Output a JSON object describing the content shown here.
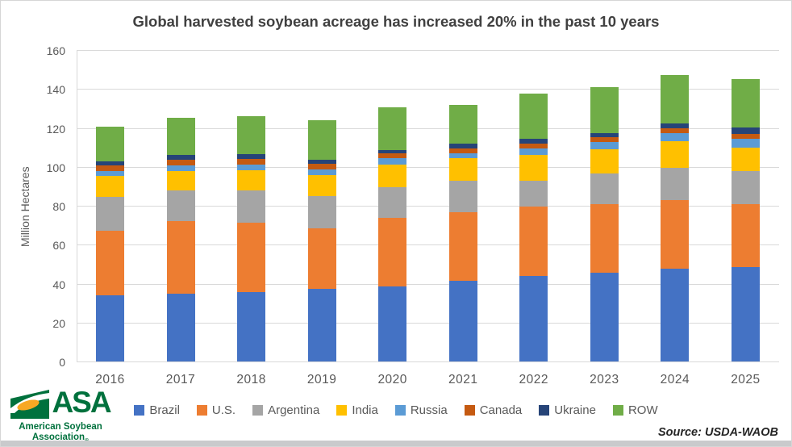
{
  "chart_data": {
    "type": "bar",
    "stacked": true,
    "title": "Global harvested soybean acreage has increased 20% in the past 10 years",
    "xlabel": "",
    "ylabel": "Million Hectares",
    "ylim": [
      0,
      160
    ],
    "ytick_step": 20,
    "grid": true,
    "legend_position": "bottom",
    "categories": [
      "2016",
      "2017",
      "2018",
      "2019",
      "2020",
      "2021",
      "2022",
      "2023",
      "2024",
      "2025"
    ],
    "series": [
      {
        "name": "Brazil",
        "color": "#4472C4",
        "values": [
          34.0,
          35.0,
          35.5,
          37.5,
          38.7,
          41.3,
          44.0,
          45.8,
          47.5,
          48.5
        ]
      },
      {
        "name": "U.S.",
        "color": "#ED7D31",
        "values": [
          33.0,
          37.0,
          36.0,
          31.0,
          35.0,
          35.5,
          35.4,
          35.0,
          35.3,
          32.5
        ]
      },
      {
        "name": "Argentina",
        "color": "#A5A5A5",
        "values": [
          17.5,
          16.0,
          16.4,
          16.5,
          15.8,
          16.1,
          13.5,
          15.7,
          16.6,
          17.0
        ]
      },
      {
        "name": "India",
        "color": "#FFC000",
        "values": [
          11.0,
          10.0,
          10.3,
          10.8,
          11.7,
          11.5,
          13.3,
          12.5,
          13.7,
          12.0
        ]
      },
      {
        "name": "Russia",
        "color": "#5B9BD5",
        "values": [
          2.5,
          2.8,
          3.0,
          3.0,
          3.1,
          2.7,
          3.2,
          3.6,
          4.1,
          4.5
        ]
      },
      {
        "name": "Canada",
        "color": "#C55A11",
        "values": [
          2.7,
          3.0,
          2.9,
          2.8,
          2.7,
          2.5,
          2.5,
          2.6,
          2.4,
          2.5
        ]
      },
      {
        "name": "Ukraine",
        "color": "#264478",
        "values": [
          2.0,
          2.2,
          2.4,
          2.2,
          1.8,
          2.2,
          2.6,
          2.2,
          2.7,
          3.3
        ]
      },
      {
        "name": "ROW",
        "color": "#70AD47",
        "values": [
          17.8,
          19.0,
          19.5,
          20.2,
          21.7,
          20.2,
          23.0,
          23.4,
          24.7,
          24.7
        ]
      }
    ],
    "totals": [
      120.5,
      125.0,
      126.0,
      124.0,
      130.5,
      132.0,
      137.5,
      140.8,
      147.0,
      145.0
    ]
  },
  "footer": {
    "source": "Source: USDA-WAOB",
    "logo": {
      "acronym": "ASA",
      "line1": "American Soybean",
      "line2": "Association",
      "registered": "®",
      "green": "#00713d",
      "orange": "#F7A823"
    }
  }
}
